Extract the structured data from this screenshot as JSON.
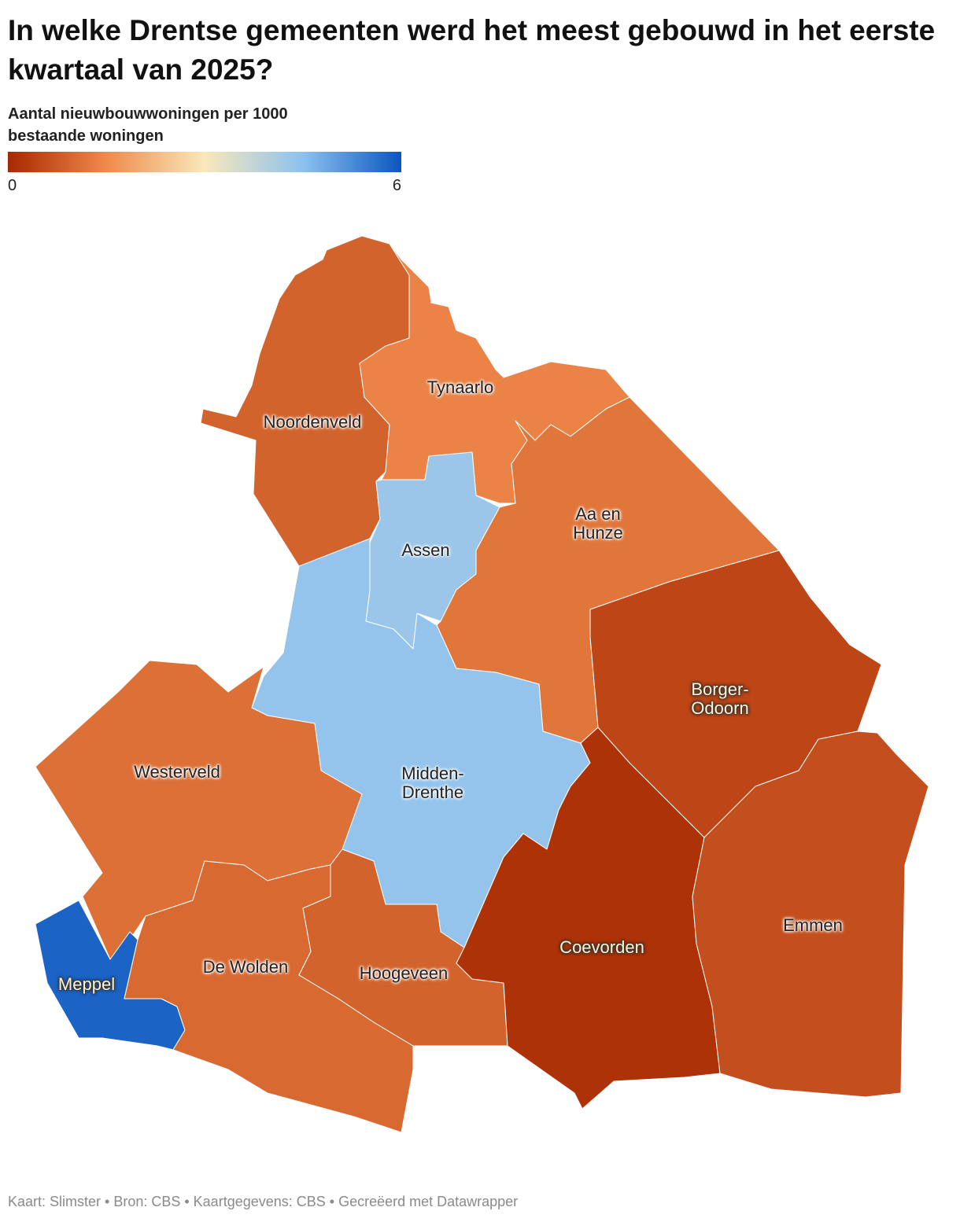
{
  "title": "In welke Drentse gemeenten werd het meest gebouwd in het eerste kwartaal van 2025?",
  "subtitle": "Aantal nieuwbouwwoningen per 1000 bestaande woningen",
  "map": {
    "type": "choropleth",
    "legend_ticks": [
      0,
      6
    ],
    "color_stops": [
      "#a72800",
      "#ef8a4a",
      "#f9e8ba",
      "#8dc1f0",
      "#0a56bf"
    ],
    "regions": [
      {
        "name": "Noordenveld",
        "value": 0.9
      },
      {
        "name": "Tynaarlo",
        "value": 1.4
      },
      {
        "name": "Assen",
        "value": 4.3
      },
      {
        "name": "Aa en Hunze",
        "value": 1.2
      },
      {
        "name": "Midden-Drenthe",
        "value": 4.4
      },
      {
        "name": "Westerveld",
        "value": 1.1
      },
      {
        "name": "Meppel",
        "value": 5.8
      },
      {
        "name": "De Wolden",
        "value": 1.0
      },
      {
        "name": "Hoogeveen",
        "value": 0.9
      },
      {
        "name": "Coevorden",
        "value": 0.15
      },
      {
        "name": "Borger-Odoorn",
        "value": 0.45
      },
      {
        "name": "Emmen",
        "value": 0.6
      }
    ]
  },
  "footer": "Kaart: Slimster • Bron: CBS • Kaartgegevens: CBS • Gecreëerd met Datawrapper"
}
